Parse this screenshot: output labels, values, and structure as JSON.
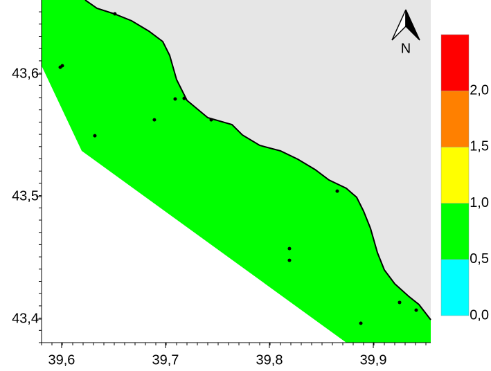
{
  "map": {
    "north_label": "N",
    "xlim": [
      39.5807,
      39.9553
    ],
    "ylim": [
      43.3808,
      43.6605
    ],
    "xticks": [
      {
        "value": 39.6,
        "label": "39,6"
      },
      {
        "value": 39.7,
        "label": "39,7"
      },
      {
        "value": 39.8,
        "label": "39,8"
      },
      {
        "value": 39.9,
        "label": "39,9"
      }
    ],
    "yticks": [
      {
        "value": 43.4,
        "label": "43,4"
      },
      {
        "value": 43.5,
        "label": "43,5"
      },
      {
        "value": 43.6,
        "label": "43,6"
      }
    ],
    "stations": {
      "x": [
        39.5987,
        39.6007,
        39.632,
        39.6513,
        39.6893,
        39.7093,
        39.718,
        39.744,
        39.8193,
        39.8193,
        39.8653,
        39.888,
        39.9253,
        39.9413
      ],
      "y": [
        43.6056,
        43.6068,
        43.5497,
        43.6492,
        43.5627,
        43.5797,
        43.5802,
        43.5627,
        43.4576,
        43.448,
        43.5045,
        43.3966,
        43.4136,
        43.4073
      ],
      "color": "#000000"
    },
    "colorbar": {
      "lim": [
        0,
        2.5
      ],
      "ticks": [
        {
          "value": 0,
          "label": "0,0"
        },
        {
          "value": 0.5,
          "label": "0,5"
        },
        {
          "value": 1,
          "label": "1,0"
        },
        {
          "value": 1.5,
          "label": "1,5"
        },
        {
          "value": 2,
          "label": "2,0"
        }
      ],
      "colors": [
        "#00ffff",
        "#00ff00",
        "#ffff00",
        "#ff8000",
        "#ff0000"
      ]
    }
  }
}
